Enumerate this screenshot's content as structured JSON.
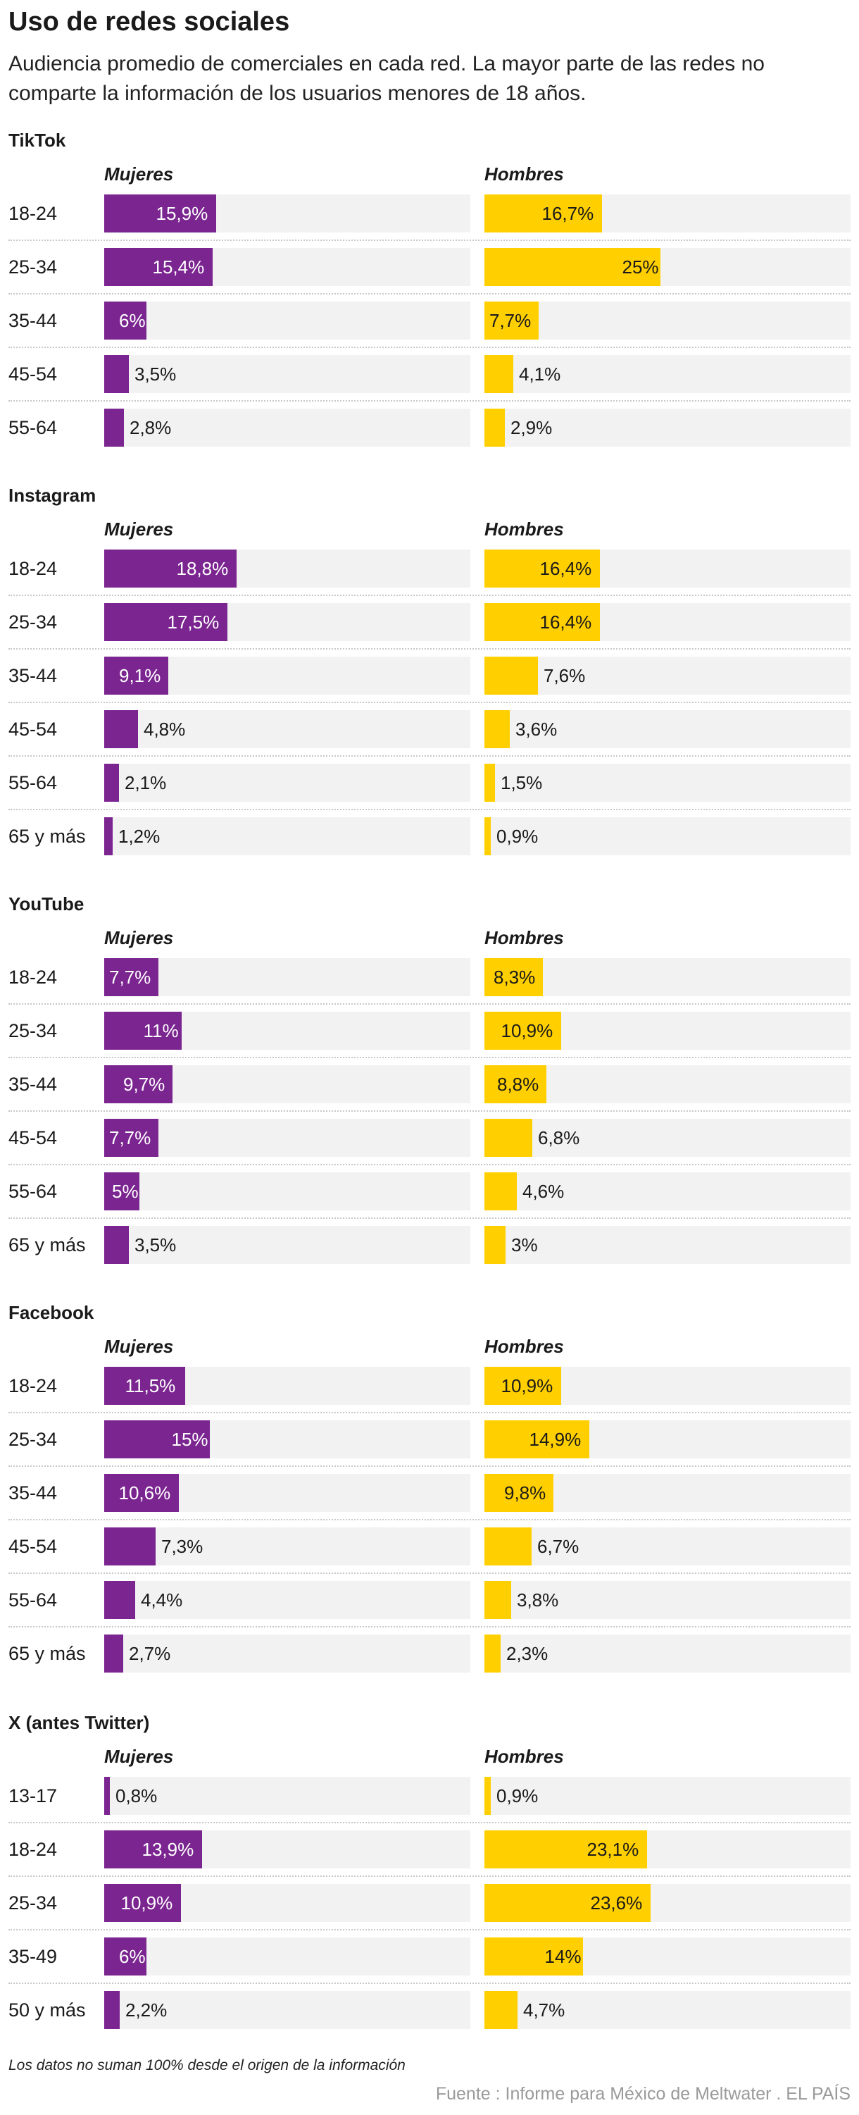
{
  "title": "Uso de redes sociales",
  "subtitle": "Audiencia promedio de comerciales en cada red. La mayor parte de las redes no comparte la información de los usuarios menores de 18 años.",
  "footnote": "Los datos no suman 100% desde el origen de la información",
  "source": "Fuente : Informe para México de Meltwater . EL PAÍS",
  "colors": {
    "mujeres": "#7b2590",
    "hombres": "#ffcf00",
    "track": "#f2f2f2"
  },
  "chart_data": {
    "type": "bar",
    "orientation": "horizontal",
    "group_labels": [
      "Mujeres",
      "Hombres"
    ],
    "xlim": [
      0,
      52
    ],
    "sections": [
      {
        "name": "TikTok",
        "categories": [
          "18-24",
          "25-34",
          "35-44",
          "45-54",
          "55-64"
        ],
        "mujeres": [
          15.9,
          15.4,
          6,
          3.5,
          2.8
        ],
        "mujeres_labels": [
          "15,9%",
          "15,4%",
          "6%",
          "3,5%",
          "2,8%"
        ],
        "hombres": [
          16.7,
          25,
          7.7,
          4.1,
          2.9
        ],
        "hombres_labels": [
          "16,7%",
          "25%",
          "7,7%",
          "4,1%",
          "2,9%"
        ]
      },
      {
        "name": "Instagram",
        "categories": [
          "18-24",
          "25-34",
          "35-44",
          "45-54",
          "55-64",
          "65 y más"
        ],
        "mujeres": [
          18.8,
          17.5,
          9.1,
          4.8,
          2.1,
          1.2
        ],
        "mujeres_labels": [
          "18,8%",
          "17,5%",
          "9,1%",
          "4,8%",
          "2,1%",
          "1,2%"
        ],
        "hombres": [
          16.4,
          16.4,
          7.6,
          3.6,
          1.5,
          0.9
        ],
        "hombres_labels": [
          "16,4%",
          "16,4%",
          "7,6%",
          "3,6%",
          "1,5%",
          "0,9%"
        ]
      },
      {
        "name": "YouTube",
        "categories": [
          "18-24",
          "25-34",
          "35-44",
          "45-54",
          "55-64",
          "65 y más"
        ],
        "mujeres": [
          7.7,
          11,
          9.7,
          7.7,
          5,
          3.5
        ],
        "mujeres_labels": [
          "7,7%",
          "11%",
          "9,7%",
          "7,7%",
          "5%",
          "3,5%"
        ],
        "hombres": [
          8.3,
          10.9,
          8.8,
          6.8,
          4.6,
          3
        ],
        "hombres_labels": [
          "8,3%",
          "10,9%",
          "8,8%",
          "6,8%",
          "4,6%",
          "3%"
        ]
      },
      {
        "name": "Facebook",
        "categories": [
          "18-24",
          "25-34",
          "35-44",
          "45-54",
          "55-64",
          "65 y más"
        ],
        "mujeres": [
          11.5,
          15,
          10.6,
          7.3,
          4.4,
          2.7
        ],
        "mujeres_labels": [
          "11,5%",
          "15%",
          "10,6%",
          "7,3%",
          "4,4%",
          "2,7%"
        ],
        "hombres": [
          10.9,
          14.9,
          9.8,
          6.7,
          3.8,
          2.3
        ],
        "hombres_labels": [
          "10,9%",
          "14,9%",
          "9,8%",
          "6,7%",
          "3,8%",
          "2,3%"
        ]
      },
      {
        "name": "X (antes Twitter)",
        "categories": [
          "13-17",
          "18-24",
          "25-34",
          "35-49",
          "50 y más"
        ],
        "mujeres": [
          0.8,
          13.9,
          10.9,
          6,
          2.2
        ],
        "mujeres_labels": [
          "0,8%",
          "13,9%",
          "10,9%",
          "6%",
          "2,2%"
        ],
        "hombres": [
          0.9,
          23.1,
          23.6,
          14,
          4.7
        ],
        "hombres_labels": [
          "0,9%",
          "23,1%",
          "23,6%",
          "14%",
          "4,7%"
        ]
      }
    ]
  }
}
